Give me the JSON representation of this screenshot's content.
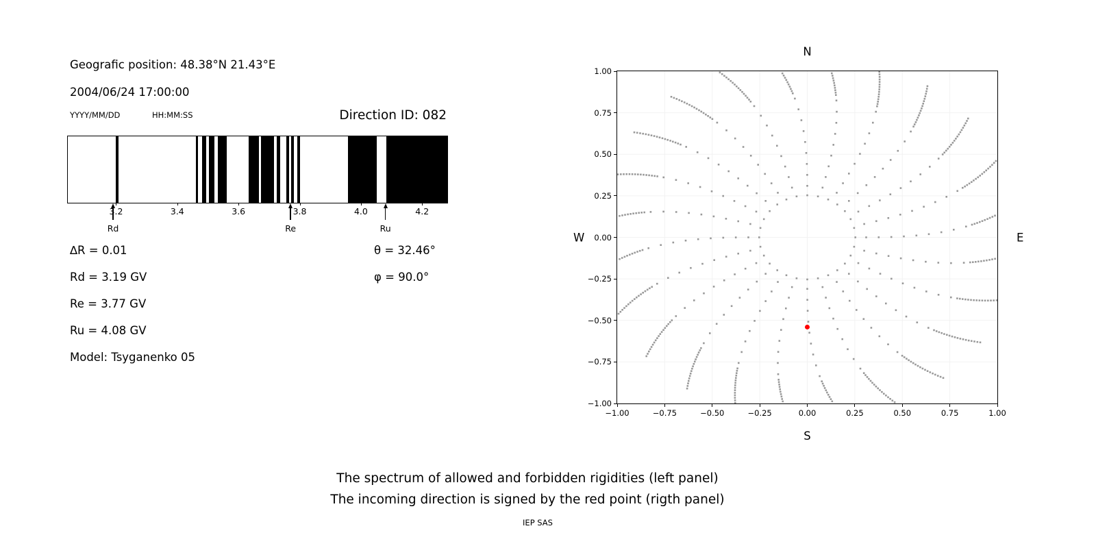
{
  "header": {
    "geo_position": "Geografic position: 48.38°N 21.43°E",
    "datetime": "2004/06/24 17:00:00",
    "date_format": "YYYY/MM/DD",
    "time_format": "HH:MM:SS",
    "direction_id": "Direction ID: 082"
  },
  "parameters": {
    "delta_r": "∆R = 0.01",
    "rd": "Rd = 3.19 GV",
    "re": "Re = 3.77 GV",
    "ru": "Ru = 4.08 GV",
    "model": "Model: Tsyganenko 05",
    "theta": "θ = 32.46°",
    "phi": "φ = 90.0°"
  },
  "caption": {
    "line1": "The spectrum of allowed and forbidden rigidities (left panel)",
    "line2": "The incoming direction is signed by the red point (rigth panel)",
    "credit": "IEP SAS"
  },
  "colors": {
    "allowed_band": "#000000",
    "dot": "#999999",
    "red_point": "#ff0000",
    "grid": "#f2f2f2"
  },
  "chart_data": [
    {
      "type": "bar",
      "name": "rigidity-spectrum",
      "description": "Barcode spectrum of cutoff rigidities: black intervals = allowed, white = forbidden",
      "x_range": [
        3.04,
        4.28
      ],
      "ticks": [
        3.2,
        3.4,
        3.6,
        3.8,
        4.0,
        4.2
      ],
      "tick_labels": [
        "3.2",
        "3.4",
        "3.6",
        "3.8",
        "4.0",
        "4.2"
      ],
      "allowed_bands": [
        [
          3.197,
          3.206
        ],
        [
          3.458,
          3.466
        ],
        [
          3.478,
          3.492
        ],
        [
          3.502,
          3.518
        ],
        [
          3.53,
          3.56
        ],
        [
          3.631,
          3.664
        ],
        [
          3.671,
          3.713
        ],
        [
          3.722,
          3.734
        ],
        [
          3.754,
          3.763
        ],
        [
          3.77,
          3.778
        ],
        [
          3.79,
          3.798
        ],
        [
          3.955,
          4.05
        ],
        [
          4.08,
          4.28
        ]
      ],
      "markers": [
        {
          "label": "Rd",
          "value": 3.19
        },
        {
          "label": "Re",
          "value": 3.77
        },
        {
          "label": "Ru",
          "value": 4.08
        }
      ]
    },
    {
      "type": "scatter",
      "name": "incoming-direction-map",
      "xlim": [
        -1,
        1
      ],
      "ylim": [
        -1,
        1
      ],
      "xticks": [
        -1,
        -0.75,
        -0.5,
        -0.25,
        0,
        0.25,
        0.5,
        0.75,
        1
      ],
      "xtick_labels": [
        "−1.00",
        "−0.75",
        "−0.50",
        "−0.25",
        "0.00",
        "0.25",
        "0.50",
        "0.75",
        "1.00"
      ],
      "yticks": [
        -1,
        -0.75,
        -0.5,
        -0.25,
        0,
        0.25,
        0.5,
        0.75,
        1
      ],
      "ytick_labels": [
        "−1.00",
        "−0.75",
        "−0.50",
        "−0.25",
        "0.00",
        "0.25",
        "0.50",
        "0.75",
        "1.00"
      ],
      "compass": {
        "top": "N",
        "bottom": "S",
        "left": "W",
        "right": "E"
      },
      "grid": true,
      "red_point": {
        "x": 0.0,
        "y": -0.54
      },
      "dot_pattern": {
        "ring": {
          "radius": 0.253,
          "count": 28
        },
        "spokes": {
          "count": 24,
          "step_deg": 15,
          "start_deg": 0,
          "r_sparse_start": 0.31,
          "r_sparse_step": 0.066,
          "r_dense_start": 0.87,
          "r_dense_step": 0.014,
          "r_end": 1.12,
          "curl": 0.28
        }
      }
    }
  ]
}
